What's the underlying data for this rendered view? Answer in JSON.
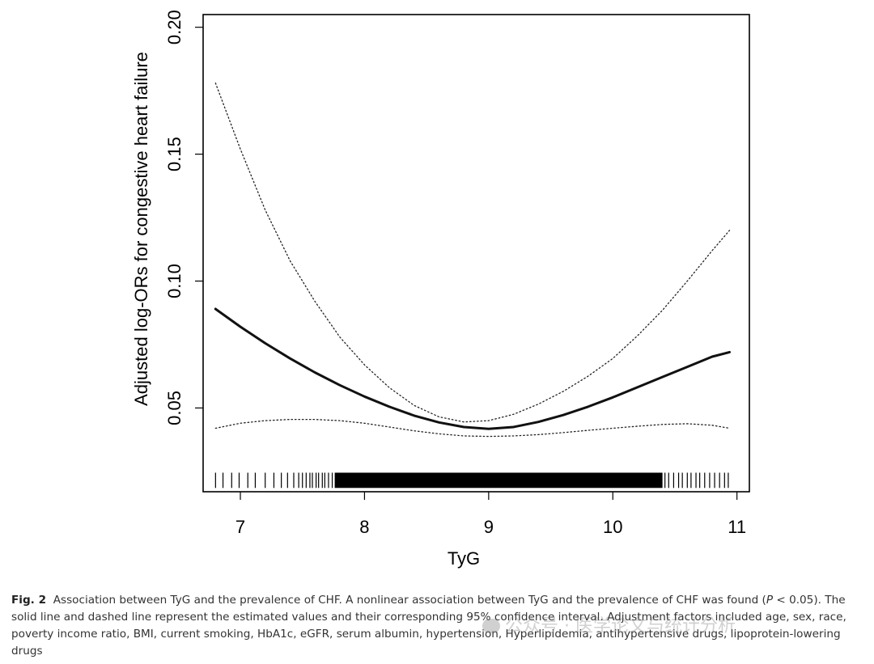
{
  "chart_data": {
    "type": "line",
    "xlabel": "TyG",
    "ylabel": "Adjusted log-ORs for congestive heart failure",
    "xlim": [
      6.7,
      11.1
    ],
    "ylim": [
      0.017,
      0.205
    ],
    "x_ticks": [
      "7",
      "8",
      "9",
      "10",
      "11"
    ],
    "y_ticks": [
      "0.05",
      "0.10",
      "0.15",
      "0.20"
    ],
    "series": [
      {
        "role": "estimate",
        "style": "solid",
        "x": [
          6.8,
          7.0,
          7.2,
          7.4,
          7.6,
          7.8,
          8.0,
          8.2,
          8.4,
          8.6,
          8.8,
          9.0,
          9.2,
          9.4,
          9.6,
          9.8,
          10.0,
          10.2,
          10.4,
          10.6,
          10.8,
          10.94
        ],
        "y": [
          0.089,
          0.082,
          0.0755,
          0.0695,
          0.064,
          0.059,
          0.0545,
          0.0505,
          0.047,
          0.0443,
          0.0425,
          0.0418,
          0.0425,
          0.0445,
          0.0472,
          0.0505,
          0.0542,
          0.0582,
          0.0622,
          0.0662,
          0.0702,
          0.072
        ]
      },
      {
        "role": "ci-upper",
        "style": "dotted",
        "x": [
          6.8,
          7.0,
          7.2,
          7.4,
          7.6,
          7.8,
          8.0,
          8.2,
          8.4,
          8.6,
          8.8,
          9.0,
          9.2,
          9.4,
          9.6,
          9.8,
          10.0,
          10.2,
          10.4,
          10.6,
          10.8,
          10.94
        ],
        "y": [
          0.178,
          0.152,
          0.128,
          0.108,
          0.092,
          0.078,
          0.067,
          0.058,
          0.051,
          0.0465,
          0.0445,
          0.045,
          0.0475,
          0.0515,
          0.0565,
          0.0625,
          0.0695,
          0.0785,
          0.0885,
          0.1,
          0.112,
          0.12
        ]
      },
      {
        "role": "ci-lower",
        "style": "dotted",
        "x": [
          6.8,
          7.0,
          7.2,
          7.4,
          7.6,
          7.8,
          8.0,
          8.2,
          8.4,
          8.6,
          8.8,
          9.0,
          9.2,
          9.4,
          9.6,
          9.8,
          10.0,
          10.2,
          10.4,
          10.6,
          10.8,
          10.94
        ],
        "y": [
          0.042,
          0.044,
          0.045,
          0.0455,
          0.0455,
          0.045,
          0.044,
          0.0425,
          0.041,
          0.0398,
          0.039,
          0.0388,
          0.039,
          0.0395,
          0.0403,
          0.0412,
          0.042,
          0.0428,
          0.0435,
          0.0438,
          0.0432,
          0.042
        ]
      }
    ],
    "rug": {
      "y_from": 0.0185,
      "y_to": 0.0245,
      "sparse_values": [
        6.8,
        6.86,
        6.93,
        6.99,
        7.06,
        7.12,
        7.2,
        7.27,
        7.33,
        7.38,
        7.43,
        7.47,
        7.5,
        7.53,
        7.56,
        7.58,
        7.61,
        7.63,
        7.66,
        7.68,
        7.71,
        7.74,
        10.42,
        10.45,
        10.49,
        10.53,
        10.56,
        10.6,
        10.63,
        10.67,
        10.7,
        10.74,
        10.78,
        10.82,
        10.86,
        10.9,
        10.93
      ],
      "dense_range": [
        7.76,
        10.4
      ]
    },
    "grid": false,
    "legend": "none",
    "colors": {
      "estimate": "#111111",
      "ci": "#222222",
      "axis": "#000000"
    }
  },
  "caption": {
    "fig_label": "Fig. 2",
    "text_before_p": "Association between TyG and the prevalence of CHF. A nonlinear association between TyG and the prevalence of CHF was found (",
    "p_symbol": "P",
    "text_after_p": " < 0.05). The solid line and dashed line represent the estimated values and their corresponding 95% confidence interval. Adjustment factors included age, sex, race, poverty income ratio, BMI, current smoking, HbA1c, eGFR, serum albumin, hypertension, Hyperlipidemia, antihypertensive drugs, lipoprotein-lowering drugs"
  },
  "watermark": {
    "text": "公众号 · 医学论文与统计分析"
  }
}
